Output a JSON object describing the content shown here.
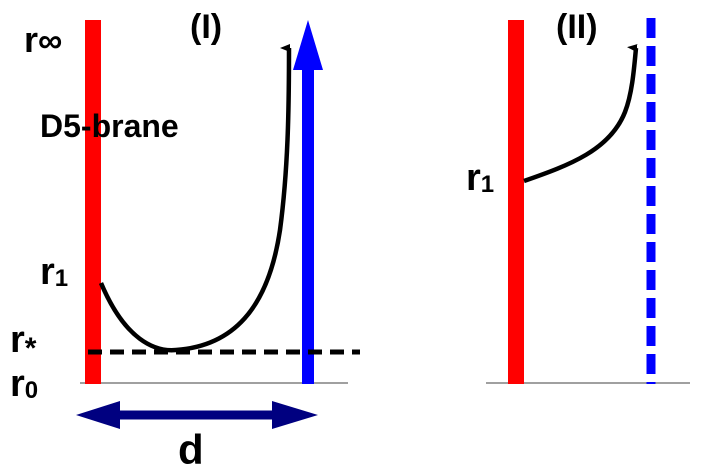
{
  "panel_i": {
    "title": "(I)",
    "brane_label": "D5-brane",
    "r_inf_label_base": "r",
    "r_inf_label_sub": "∞",
    "r1_label_base": "r",
    "r1_label_sub": "1",
    "rstar_label_base": "r",
    "rstar_label_sub": "*",
    "r0_label_base": "r",
    "r0_label_sub": "0",
    "d_label": "d"
  },
  "panel_ii": {
    "title": "(II)",
    "r1_label_base": "r",
    "r1_label_sub": "1"
  },
  "colors": {
    "brane": "#ff0000",
    "probe": "#0000ff",
    "distance_arrow": "#000080",
    "curve": "#000000",
    "baseline": "#808080"
  }
}
